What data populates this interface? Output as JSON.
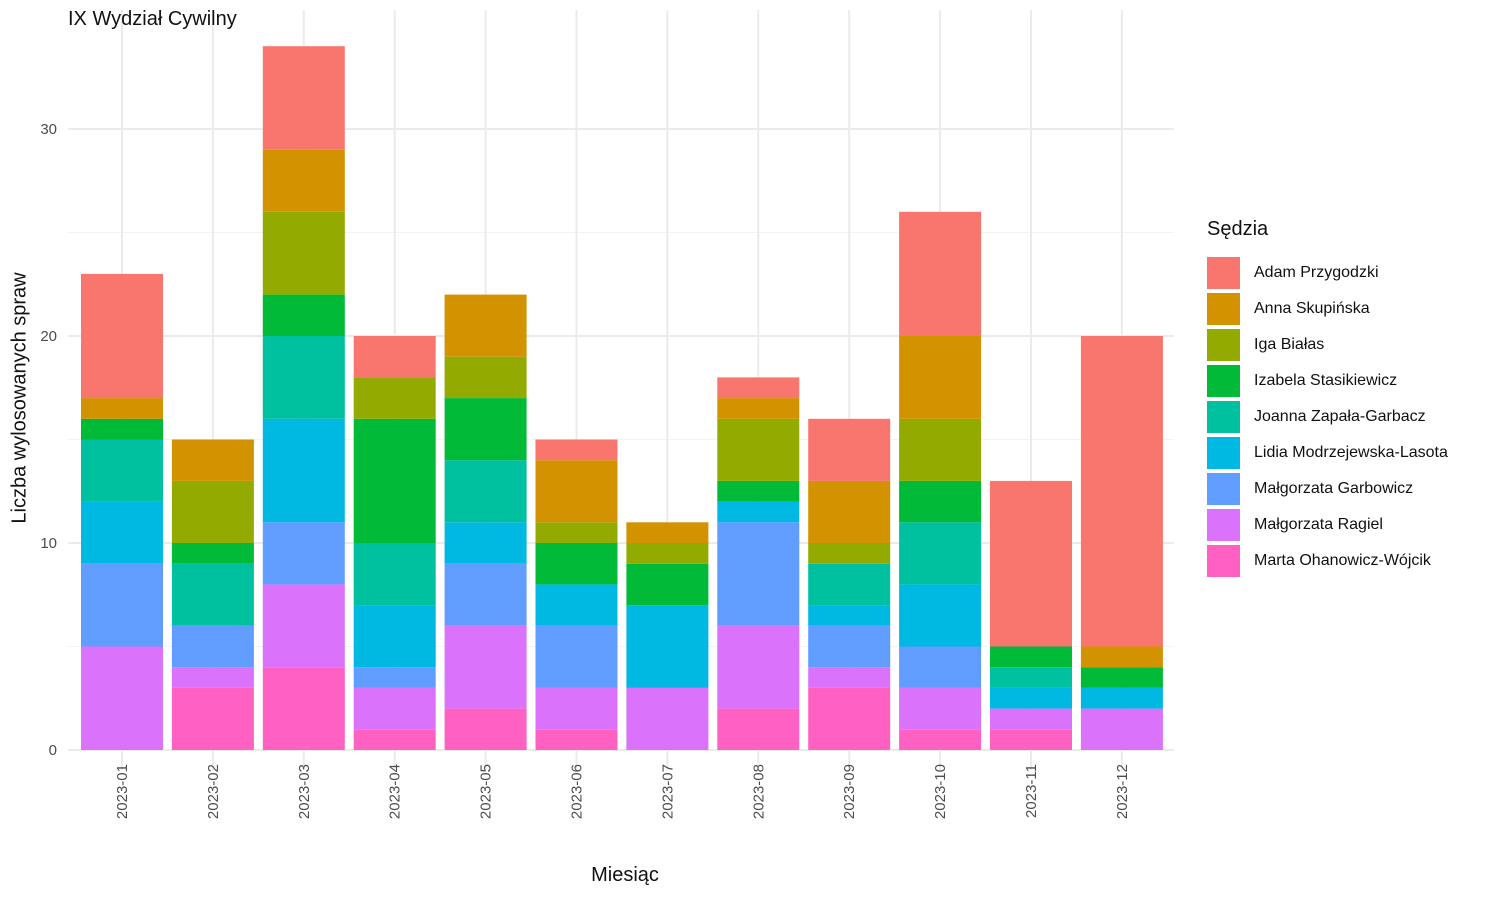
{
  "chart_data": {
    "type": "bar",
    "stacked": true,
    "title": "IX Wydział Cywilny",
    "xlabel": "Miesiąc",
    "ylabel": "Liczba wylosowanych spraw",
    "ylim": [
      0,
      34
    ],
    "yticks": [
      0,
      10,
      20,
      30
    ],
    "grid": true,
    "legend_title": "Sędzia",
    "legend_position": "right",
    "categories": [
      "2023-01",
      "2023-02",
      "2023-03",
      "2023-04",
      "2023-05",
      "2023-06",
      "2023-07",
      "2023-08",
      "2023-09",
      "2023-10",
      "2023-11",
      "2023-12"
    ],
    "series": [
      {
        "name": "Adam Przygodzki",
        "color": "#F8766D",
        "values": [
          6,
          0,
          5,
          2,
          0,
          1,
          0,
          1,
          3,
          6,
          8,
          15
        ]
      },
      {
        "name": "Anna Skupińska",
        "color": "#D39200",
        "values": [
          1,
          2,
          3,
          0,
          3,
          3,
          1,
          1,
          3,
          4,
          0,
          1
        ]
      },
      {
        "name": "Iga Białas",
        "color": "#93AA00",
        "values": [
          0,
          3,
          4,
          2,
          2,
          1,
          1,
          3,
          1,
          3,
          0,
          0
        ]
      },
      {
        "name": "Izabela Stasikiewicz",
        "color": "#00BA38",
        "values": [
          1,
          1,
          2,
          6,
          3,
          2,
          2,
          1,
          0,
          2,
          1,
          1
        ]
      },
      {
        "name": "Joanna Zapała-Garbacz",
        "color": "#00C19F",
        "values": [
          3,
          3,
          4,
          3,
          3,
          0,
          0,
          0,
          2,
          3,
          1,
          0
        ]
      },
      {
        "name": "Lidia Modrzejewska-Lasota",
        "color": "#00B9E3",
        "values": [
          3,
          0,
          5,
          3,
          2,
          2,
          4,
          1,
          1,
          3,
          1,
          1
        ]
      },
      {
        "name": "Małgorzata Garbowicz",
        "color": "#619CFF",
        "values": [
          4,
          2,
          3,
          1,
          3,
          3,
          0,
          5,
          2,
          2,
          0,
          0
        ]
      },
      {
        "name": "Małgorzata Ragiel",
        "color": "#DB72FB",
        "values": [
          5,
          1,
          4,
          2,
          4,
          2,
          3,
          4,
          1,
          2,
          1,
          2
        ]
      },
      {
        "name": "Marta Ohanowicz-Wójcik",
        "color": "#FF61C3",
        "values": [
          0,
          3,
          4,
          1,
          2,
          1,
          0,
          2,
          3,
          1,
          1,
          0
        ]
      }
    ]
  }
}
